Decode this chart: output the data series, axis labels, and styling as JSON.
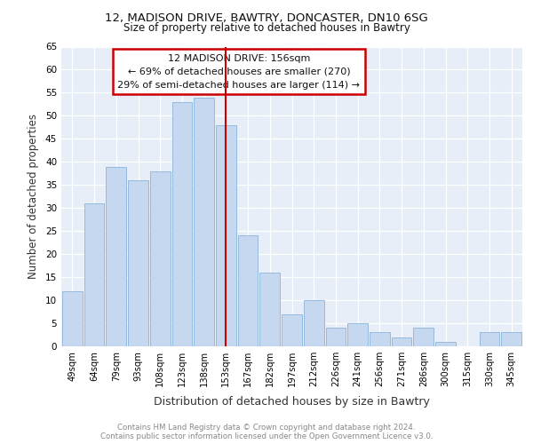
{
  "title1": "12, MADISON DRIVE, BAWTRY, DONCASTER, DN10 6SG",
  "title2": "Size of property relative to detached houses in Bawtry",
  "xlabel": "Distribution of detached houses by size in Bawtry",
  "ylabel": "Number of detached properties",
  "footnote": "Contains HM Land Registry data © Crown copyright and database right 2024.\nContains public sector information licensed under the Open Government Licence v3.0.",
  "annotation_line1": "12 MADISON DRIVE: 156sqm",
  "annotation_line2": "← 69% of detached houses are smaller (270)",
  "annotation_line3": "29% of semi-detached houses are larger (114) →",
  "bar_labels": [
    "49sqm",
    "64sqm",
    "79sqm",
    "93sqm",
    "108sqm",
    "123sqm",
    "138sqm",
    "153sqm",
    "167sqm",
    "182sqm",
    "197sqm",
    "212sqm",
    "226sqm",
    "241sqm",
    "256sqm",
    "271sqm",
    "286sqm",
    "300sqm",
    "315sqm",
    "330sqm",
    "345sqm"
  ],
  "bar_values": [
    12,
    31,
    39,
    36,
    38,
    53,
    54,
    48,
    24,
    16,
    7,
    10,
    4,
    5,
    3,
    2,
    4,
    1,
    0,
    3,
    3
  ],
  "bar_color": "#c5d8f0",
  "bar_edge_color": "#8ab4d8",
  "vline_index": 7,
  "vline_color": "#cc0000",
  "box_color": "#cc0000",
  "bg_color": "#e8eef8",
  "grid_color": "#ffffff",
  "ylim": [
    0,
    65
  ],
  "yticks": [
    0,
    5,
    10,
    15,
    20,
    25,
    30,
    35,
    40,
    45,
    50,
    55,
    60,
    65
  ]
}
